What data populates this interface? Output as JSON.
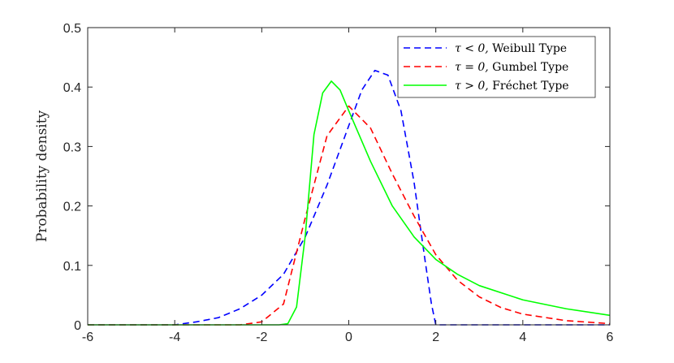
{
  "chart_data": {
    "type": "line",
    "title": "",
    "xlabel": "",
    "ylabel": "Probability density",
    "xlim": [
      -6,
      6
    ],
    "ylim": [
      0,
      0.5
    ],
    "xticks": [
      -6,
      -4,
      -2,
      0,
      2,
      4,
      6
    ],
    "yticks": [
      0,
      0.1,
      0.2,
      0.3,
      0.4,
      0.5
    ],
    "xtick_labels": [
      "-6",
      "-4",
      "-2",
      "0",
      "2",
      "4",
      "6"
    ],
    "ytick_labels": [
      "0",
      "0.1",
      "0.2",
      "0.3",
      "0.4",
      "0.5"
    ],
    "grid": false,
    "legend_position": "top-right",
    "series": [
      {
        "name": "τ < 0, Weibull Type",
        "legend_math": "τ < 0,",
        "legend_text": "Weibull Type",
        "color": "#0000ff",
        "style": "dashed",
        "x": [
          -6,
          -5,
          -4,
          -3.5,
          -3,
          -2.5,
          -2,
          -1.5,
          -1,
          -0.5,
          0,
          0.3,
          0.6,
          0.9,
          1.2,
          1.5,
          1.75,
          1.9,
          2,
          3,
          4,
          5,
          6
        ],
        "y": [
          0,
          0,
          0.0,
          0.005,
          0.012,
          0.027,
          0.05,
          0.085,
          0.148,
          0.235,
          0.335,
          0.395,
          0.428,
          0.42,
          0.36,
          0.24,
          0.11,
          0.035,
          0,
          0,
          0,
          0,
          0
        ]
      },
      {
        "name": "τ = 0, Gumbel Type",
        "legend_math": "τ = 0,",
        "legend_text": "Gumbel Type",
        "color": "#ff0000",
        "style": "dashed",
        "x": [
          -6,
          -3,
          -2.5,
          -2,
          -1.5,
          -1,
          -0.5,
          0,
          0.5,
          1,
          1.5,
          2,
          2.5,
          3,
          3.5,
          4,
          5,
          6
        ],
        "y": [
          0,
          0,
          0.0,
          0.005,
          0.035,
          0.18,
          0.318,
          0.368,
          0.331,
          0.254,
          0.183,
          0.118,
          0.075,
          0.047,
          0.029,
          0.018,
          0.007,
          0.002
        ]
      },
      {
        "name": "τ > 0, Fréchet Type",
        "legend_math": "τ > 0,",
        "legend_text": "Fréchet Type",
        "color": "#00ff00",
        "style": "solid",
        "x": [
          -6,
          -1.6,
          -1.4,
          -1.2,
          -1,
          -0.8,
          -0.6,
          -0.4,
          -0.2,
          0,
          0.5,
          1,
          1.5,
          2,
          2.5,
          3,
          4,
          5,
          6
        ],
        "y": [
          0,
          0,
          0.002,
          0.03,
          0.15,
          0.32,
          0.39,
          0.41,
          0.395,
          0.36,
          0.275,
          0.2,
          0.148,
          0.11,
          0.085,
          0.066,
          0.042,
          0.027,
          0.016
        ]
      }
    ]
  }
}
